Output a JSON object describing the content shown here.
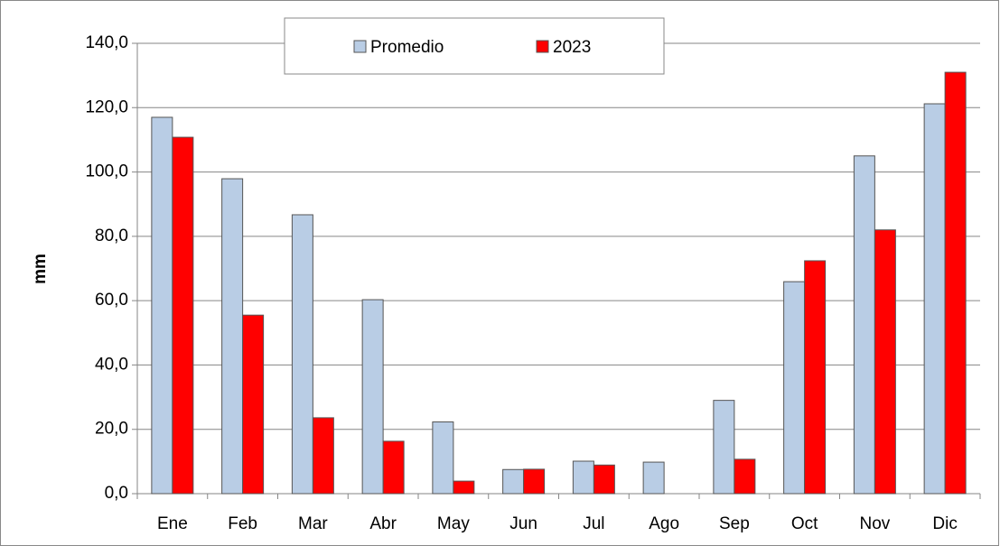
{
  "chart_data": {
    "type": "bar",
    "y_label": "mm",
    "categories": [
      "Ene",
      "Feb",
      "Mar",
      "Abr",
      "May",
      "Jun",
      "Jul",
      "Ago",
      "Sep",
      "Oct",
      "Nov",
      "Dic"
    ],
    "series": [
      {
        "name": "Promedio",
        "color": "#b9cde5",
        "values": [
          117.0,
          97.9,
          86.7,
          60.3,
          22.3,
          7.5,
          10.1,
          9.8,
          29.0,
          65.9,
          105.0,
          121.2
        ]
      },
      {
        "name": "2023",
        "color": "#ff0000",
        "values": [
          110.8,
          55.5,
          23.6,
          16.3,
          3.9,
          7.6,
          8.9,
          0,
          10.7,
          72.4,
          82.0,
          131.0
        ]
      }
    ],
    "ylim": [
      0,
      140
    ],
    "yticks": [
      {
        "value": 0,
        "label": "0,0"
      },
      {
        "value": 20,
        "label": "20,0"
      },
      {
        "value": 40,
        "label": "40,0"
      },
      {
        "value": 60,
        "label": "60,0"
      },
      {
        "value": 80,
        "label": "80,0"
      },
      {
        "value": 100,
        "label": "100,0"
      },
      {
        "value": 120,
        "label": "120,0"
      },
      {
        "value": 140,
        "label": "140,0"
      }
    ],
    "grid": true,
    "legend": "top"
  }
}
